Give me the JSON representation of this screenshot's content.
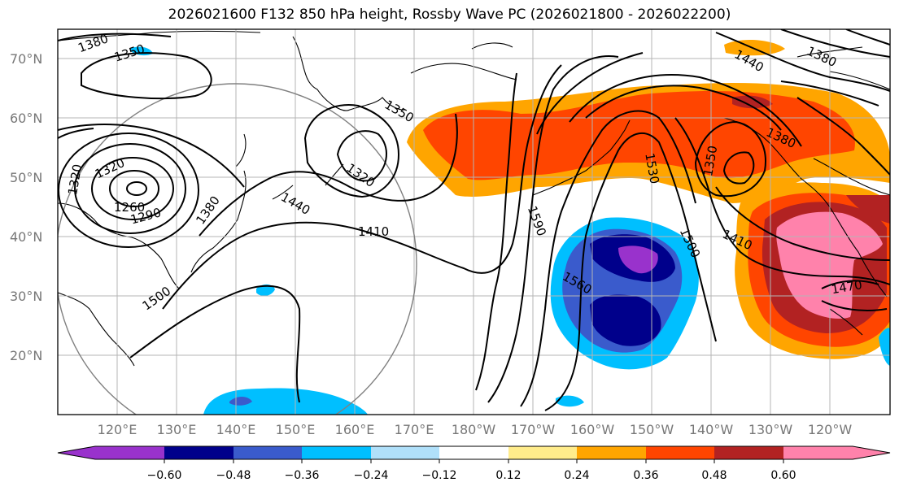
{
  "title": "2026021600 F132 850 hPa height, Rossby Wave PC (2026021800 - 2026022200)",
  "lat_labels": [
    "70°N",
    "60°N",
    "50°N",
    "40°N",
    "30°N",
    "20°N"
  ],
  "lon_labels": [
    "120°E",
    "130°E",
    "140°E",
    "150°E",
    "160°E",
    "170°E",
    "180°W",
    "170°W",
    "160°W",
    "150°W",
    "140°W",
    "130°W",
    "120°W"
  ],
  "contour_labels": [
    "1380",
    "1350",
    "1320",
    "1260",
    "1290",
    "1320",
    "1380",
    "1440",
    "1500",
    "1350",
    "1320",
    "1410",
    "1590",
    "1560",
    "1530",
    "1500",
    "1440",
    "1380",
    "1350",
    "1380",
    "1410",
    "1470"
  ],
  "colorbar": {
    "ticks": [
      "−0.60",
      "−0.48",
      "−0.36",
      "−0.24",
      "−0.12",
      "0.12",
      "0.24",
      "0.36",
      "0.48",
      "0.60"
    ],
    "colors": [
      "#9932cc",
      "#00008b",
      "#3a5bcc",
      "#00bfff",
      "#b0e0fa",
      "#ffffff",
      "#ffec8b",
      "#ffa500",
      "#ff4500",
      "#b22222",
      "#ff82ab"
    ]
  }
}
